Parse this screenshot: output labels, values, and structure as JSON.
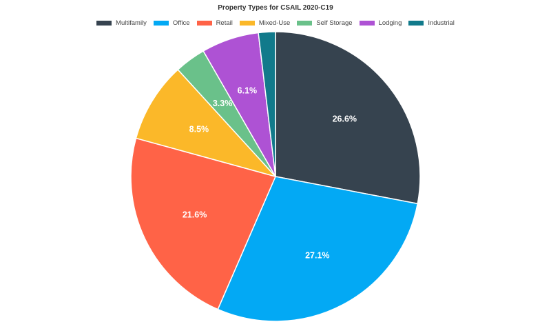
{
  "chart_data": {
    "type": "pie",
    "title": "Property Types for CSAIL 2020-C19",
    "legend_position": "top",
    "slices": [
      {
        "name": "Multifamily",
        "value": 26.6,
        "label": "26.6%",
        "color": "#36434f"
      },
      {
        "name": "Office",
        "value": 27.1,
        "label": "27.1%",
        "color": "#03a9f4"
      },
      {
        "name": "Retail",
        "value": 21.6,
        "label": "21.6%",
        "color": "#ff6347"
      },
      {
        "name": "Mixed-Use",
        "value": 8.5,
        "label": "8.5%",
        "color": "#fbb829"
      },
      {
        "name": "Self Storage",
        "value": 3.3,
        "label": "3.3%",
        "color": "#6ac18a"
      },
      {
        "name": "Lodging",
        "value": 6.1,
        "label": "6.1%",
        "color": "#ae52d4"
      },
      {
        "name": "Industrial",
        "value": 1.8,
        "label": "",
        "color": "#117a8b"
      }
    ]
  }
}
